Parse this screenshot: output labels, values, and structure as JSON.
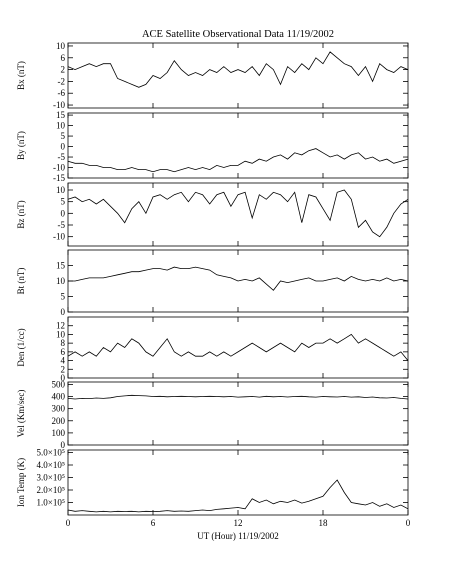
{
  "chart_data": [
    {
      "type": "line",
      "title": "ACE Satellite Observational Data   11/19/2002",
      "ylabel": "Bx (nT)",
      "xlim": [
        0,
        24
      ],
      "xticks": [
        0,
        6,
        12,
        18,
        {
          "value": 24,
          "label": "0"
        }
      ],
      "ylim": [
        -11,
        11
      ],
      "yticks": [
        -10,
        -6,
        -2,
        2,
        6,
        10
      ],
      "x": [
        0,
        0.5,
        1,
        1.5,
        2,
        2.5,
        3,
        3.5,
        4,
        4.5,
        5,
        5.5,
        6,
        6.5,
        7,
        7.5,
        8,
        8.5,
        9,
        9.5,
        10,
        10.5,
        11,
        11.5,
        12,
        12.5,
        13,
        13.5,
        14,
        14.5,
        15,
        15.5,
        16,
        16.5,
        17,
        17.5,
        18,
        18.5,
        19,
        19.5,
        20,
        20.5,
        21,
        21.5,
        22,
        22.5,
        23,
        23.5,
        24
      ],
      "series": [
        {
          "color": "#000000",
          "values": [
            3,
            2,
            3,
            4,
            3,
            4,
            4,
            -1,
            -2,
            -3,
            -4,
            -3,
            0,
            -1,
            1,
            5,
            2,
            0,
            1,
            0,
            2,
            1,
            3,
            1,
            2,
            1,
            3,
            0,
            4,
            2,
            -3,
            3,
            1,
            4,
            2,
            6,
            4,
            8,
            6,
            4,
            3,
            0,
            3,
            -2,
            4,
            2,
            1,
            3,
            2
          ]
        }
      ]
    },
    {
      "type": "line",
      "ylabel": "By (nT)",
      "xlim": [
        0,
        24
      ],
      "xticks": [
        0,
        6,
        12,
        18,
        {
          "value": 24,
          "label": "0"
        }
      ],
      "ylim": [
        -15,
        16
      ],
      "yticks": [
        -15,
        -10,
        -5,
        0,
        5,
        10,
        15
      ],
      "x": [
        0,
        0.5,
        1,
        1.5,
        2,
        2.5,
        3,
        3.5,
        4,
        4.5,
        5,
        5.5,
        6,
        6.5,
        7,
        7.5,
        8,
        8.5,
        9,
        9.5,
        10,
        10.5,
        11,
        11.5,
        12,
        12.5,
        13,
        13.5,
        14,
        14.5,
        15,
        15.5,
        16,
        16.5,
        17,
        17.5,
        18,
        18.5,
        19,
        19.5,
        20,
        20.5,
        21,
        21.5,
        22,
        22.5,
        23,
        23.5,
        24
      ],
      "series": [
        {
          "color": "#000000",
          "values": [
            -7,
            -8,
            -8,
            -9,
            -9,
            -10,
            -10,
            -11,
            -11,
            -10,
            -11,
            -11,
            -12,
            -11,
            -11,
            -12,
            -11,
            -10,
            -11,
            -10,
            -11,
            -9,
            -10,
            -9,
            -9,
            -7,
            -8,
            -6,
            -7,
            -5,
            -4,
            -6,
            -3,
            -4,
            -2,
            -1,
            -3,
            -5,
            -4,
            -6,
            -4,
            -3,
            -6,
            -5,
            -7,
            -6,
            -8,
            -7,
            -6
          ]
        }
      ]
    },
    {
      "type": "line",
      "ylabel": "Bz (nT)",
      "xlim": [
        0,
        24
      ],
      "xticks": [
        0,
        6,
        12,
        18,
        {
          "value": 24,
          "label": "0"
        }
      ],
      "ylim": [
        -14,
        13
      ],
      "yticks": [
        -10,
        -5,
        0,
        5,
        10
      ],
      "x": [
        0,
        0.5,
        1,
        1.5,
        2,
        2.5,
        3,
        3.5,
        4,
        4.5,
        5,
        5.5,
        6,
        6.5,
        7,
        7.5,
        8,
        8.5,
        9,
        9.5,
        10,
        10.5,
        11,
        11.5,
        12,
        12.5,
        13,
        13.5,
        14,
        14.5,
        15,
        15.5,
        16,
        16.5,
        17,
        17.5,
        18,
        18.5,
        19,
        19.5,
        20,
        20.5,
        21,
        21.5,
        22,
        22.5,
        23,
        23.5,
        24
      ],
      "series": [
        {
          "color": "#000000",
          "values": [
            6,
            7,
            5,
            6,
            4,
            6,
            3,
            0,
            -4,
            2,
            5,
            0,
            7,
            8,
            6,
            8,
            9,
            5,
            9,
            8,
            4,
            8,
            9,
            3,
            8,
            9,
            -2,
            8,
            6,
            9,
            8,
            5,
            9,
            -4,
            8,
            7,
            2,
            -3,
            9,
            10,
            6,
            -6,
            -3,
            -8,
            -10,
            -6,
            0,
            4,
            6
          ]
        }
      ]
    },
    {
      "type": "line",
      "ylabel": "Bt (nT)",
      "xlim": [
        0,
        24
      ],
      "xticks": [
        0,
        6,
        12,
        18,
        {
          "value": 24,
          "label": "0"
        }
      ],
      "ylim": [
        0,
        20
      ],
      "yticks": [
        0,
        5,
        10,
        15
      ],
      "x": [
        0,
        0.5,
        1,
        1.5,
        2,
        2.5,
        3,
        3.5,
        4,
        4.5,
        5,
        5.5,
        6,
        6.5,
        7,
        7.5,
        8,
        8.5,
        9,
        9.5,
        10,
        10.5,
        11,
        11.5,
        12,
        12.5,
        13,
        13.5,
        14,
        14.5,
        15,
        15.5,
        16,
        16.5,
        17,
        17.5,
        18,
        18.5,
        19,
        19.5,
        20,
        20.5,
        21,
        21.5,
        22,
        22.5,
        23,
        23.5,
        24
      ],
      "series": [
        {
          "color": "#000000",
          "values": [
            10,
            10,
            10.5,
            11,
            11,
            11,
            11.5,
            12,
            12.5,
            13,
            13,
            13.5,
            14,
            14,
            13.5,
            14.5,
            14,
            14,
            14.5,
            14,
            13.5,
            12,
            11.5,
            11,
            10,
            10.5,
            10,
            11,
            9,
            7,
            10,
            9.5,
            10,
            10.5,
            11,
            10,
            10,
            10.5,
            11,
            10,
            11.5,
            10.5,
            10,
            10.5,
            10,
            11,
            10,
            10.5,
            10
          ]
        }
      ]
    },
    {
      "type": "line",
      "ylabel": "Den (1/cc)",
      "xlim": [
        0,
        24
      ],
      "xticks": [
        0,
        6,
        12,
        18,
        {
          "value": 24,
          "label": "0"
        }
      ],
      "ylim": [
        0,
        14
      ],
      "yticks": [
        0,
        2,
        4,
        6,
        8,
        10,
        12
      ],
      "x": [
        0,
        0.5,
        1,
        1.5,
        2,
        2.5,
        3,
        3.5,
        4,
        4.5,
        5,
        5.5,
        6,
        6.5,
        7,
        7.5,
        8,
        8.5,
        9,
        9.5,
        10,
        10.5,
        11,
        11.5,
        12,
        12.5,
        13,
        13.5,
        14,
        14.5,
        15,
        15.5,
        16,
        16.5,
        17,
        17.5,
        18,
        18.5,
        19,
        19.5,
        20,
        20.5,
        21,
        21.5,
        22,
        22.5,
        23,
        23.5,
        24
      ],
      "series": [
        {
          "color": "#000000",
          "values": [
            5,
            6,
            5,
            6,
            5,
            7,
            6,
            8,
            7,
            9,
            8,
            6,
            5,
            7,
            9,
            6,
            5,
            6,
            5,
            5,
            6,
            5,
            6,
            5,
            6,
            7,
            8,
            7,
            6,
            7,
            8,
            7,
            6,
            8,
            7,
            8,
            8,
            9,
            8,
            9,
            10,
            8,
            9,
            8,
            7,
            6,
            5,
            6,
            4
          ]
        }
      ]
    },
    {
      "type": "line",
      "ylabel": "Vel (Km/sec)",
      "xlim": [
        0,
        24
      ],
      "xticks": [
        0,
        6,
        12,
        18,
        {
          "value": 24,
          "label": "0"
        }
      ],
      "ylim": [
        0,
        520
      ],
      "yticks": [
        0,
        100,
        200,
        300,
        400,
        500
      ],
      "x": [
        0,
        0.5,
        1,
        1.5,
        2,
        2.5,
        3,
        3.5,
        4,
        4.5,
        5,
        5.5,
        6,
        6.5,
        7,
        7.5,
        8,
        8.5,
        9,
        9.5,
        10,
        10.5,
        11,
        11.5,
        12,
        12.5,
        13,
        13.5,
        14,
        14.5,
        15,
        15.5,
        16,
        16.5,
        17,
        17.5,
        18,
        18.5,
        19,
        19.5,
        20,
        20.5,
        21,
        21.5,
        22,
        22.5,
        23,
        23.5,
        24
      ],
      "series": [
        {
          "color": "#000000",
          "values": [
            385,
            380,
            385,
            383,
            388,
            385,
            390,
            400,
            405,
            410,
            408,
            405,
            400,
            402,
            398,
            400,
            402,
            400,
            398,
            400,
            402,
            400,
            398,
            400,
            395,
            398,
            400,
            395,
            402,
            398,
            400,
            396,
            400,
            402,
            398,
            395,
            400,
            398,
            396,
            400,
            395,
            398,
            392,
            396,
            390,
            388,
            392,
            385,
            380
          ]
        }
      ]
    },
    {
      "type": "line",
      "ylabel": "Ion Temp (K)",
      "xlabel": "UT (Hour)   11/19/2002",
      "xlim": [
        0,
        24
      ],
      "xticks": [
        0,
        6,
        12,
        18,
        {
          "value": 24,
          "label": "0"
        }
      ],
      "ylim": [
        0,
        520000
      ],
      "yticks": [
        {
          "value": 100000,
          "label": "1.0×10⁵"
        },
        {
          "value": 200000,
          "label": "2.0×10⁵"
        },
        {
          "value": 300000,
          "label": "3.0×10⁵"
        },
        {
          "value": 400000,
          "label": "4.0×10⁵"
        },
        {
          "value": 500000,
          "label": "5.0×10⁵"
        }
      ],
      "x": [
        0,
        0.5,
        1,
        1.5,
        2,
        2.5,
        3,
        3.5,
        4,
        4.5,
        5,
        5.5,
        6,
        6.5,
        7,
        7.5,
        8,
        8.5,
        9,
        9.5,
        10,
        10.5,
        11,
        11.5,
        12,
        12.5,
        13,
        13.5,
        14,
        14.5,
        15,
        15.5,
        16,
        16.5,
        17,
        17.5,
        18,
        18.5,
        19,
        19.5,
        20,
        20.5,
        21,
        21.5,
        22,
        22.5,
        23,
        23.5,
        24
      ],
      "series": [
        {
          "color": "#000000",
          "values": [
            40000,
            30000,
            35000,
            30000,
            25000,
            30000,
            25000,
            30000,
            28000,
            30000,
            25000,
            30000,
            28000,
            30000,
            35000,
            30000,
            32000,
            30000,
            35000,
            40000,
            35000,
            45000,
            50000,
            55000,
            60000,
            50000,
            130000,
            100000,
            120000,
            90000,
            110000,
            100000,
            120000,
            95000,
            110000,
            130000,
            150000,
            220000,
            280000,
            180000,
            100000,
            90000,
            80000,
            100000,
            70000,
            90000,
            60000,
            80000,
            50000
          ]
        }
      ]
    }
  ]
}
